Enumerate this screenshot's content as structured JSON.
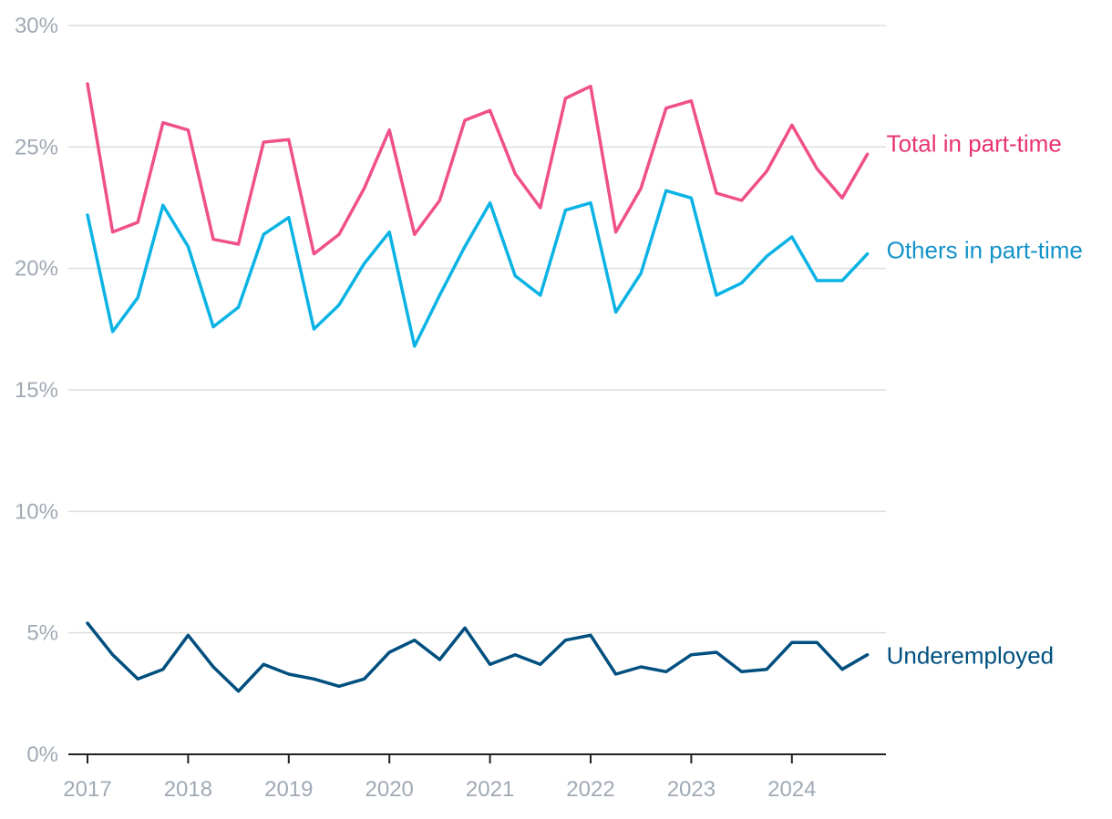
{
  "chart_data": {
    "type": "line",
    "title": "",
    "xlabel": "",
    "ylabel": "",
    "ylim": [
      0,
      30
    ],
    "yticks": [
      0,
      5,
      10,
      15,
      20,
      25,
      30
    ],
    "ytick_labels": [
      "0%",
      "5%",
      "10%",
      "15%",
      "20%",
      "25%",
      "30%"
    ],
    "x_start_year": 2017,
    "x_step_per_point": 0.25,
    "xtick_labels": [
      "2017",
      "2018",
      "2019",
      "2020",
      "2021",
      "2022",
      "2023",
      "2024"
    ],
    "xticks": [
      2017,
      2018,
      2019,
      2020,
      2021,
      2022,
      2023,
      2024
    ],
    "grid": true,
    "legend": "inline-right",
    "series": [
      {
        "name": "Total in part-time",
        "color": "#f0508a",
        "label_color": "#e8336f",
        "values": [
          27.6,
          21.5,
          21.9,
          26.0,
          25.7,
          21.2,
          21.0,
          25.2,
          25.3,
          20.6,
          21.4,
          23.3,
          25.7,
          21.4,
          22.8,
          26.1,
          26.5,
          23.9,
          22.5,
          27.0,
          27.5,
          21.5,
          23.3,
          26.6,
          26.9,
          23.1,
          22.8,
          24.0,
          25.9,
          24.1,
          22.9,
          24.7
        ]
      },
      {
        "name": "Others in part-time",
        "color": "#0bb3e4",
        "label_color": "#1493c9",
        "values": [
          22.2,
          17.4,
          18.8,
          22.6,
          20.9,
          17.6,
          18.4,
          21.4,
          22.1,
          17.5,
          18.5,
          20.2,
          21.5,
          16.8,
          18.9,
          20.9,
          22.7,
          19.7,
          18.9,
          22.4,
          22.7,
          18.2,
          19.8,
          23.2,
          22.9,
          18.9,
          19.4,
          20.5,
          21.3,
          19.5,
          19.5,
          20.6
        ]
      },
      {
        "name": "Underemployed",
        "color": "#004f7f",
        "label_color": "#004f7f",
        "values": [
          5.4,
          4.1,
          3.1,
          3.5,
          4.9,
          3.6,
          2.6,
          3.7,
          3.3,
          3.1,
          2.8,
          3.1,
          4.2,
          4.7,
          3.9,
          5.2,
          3.7,
          4.1,
          3.7,
          4.7,
          4.9,
          3.3,
          3.6,
          3.4,
          4.1,
          4.2,
          3.4,
          3.5,
          4.6,
          4.6,
          3.5,
          4.1
        ]
      }
    ]
  }
}
